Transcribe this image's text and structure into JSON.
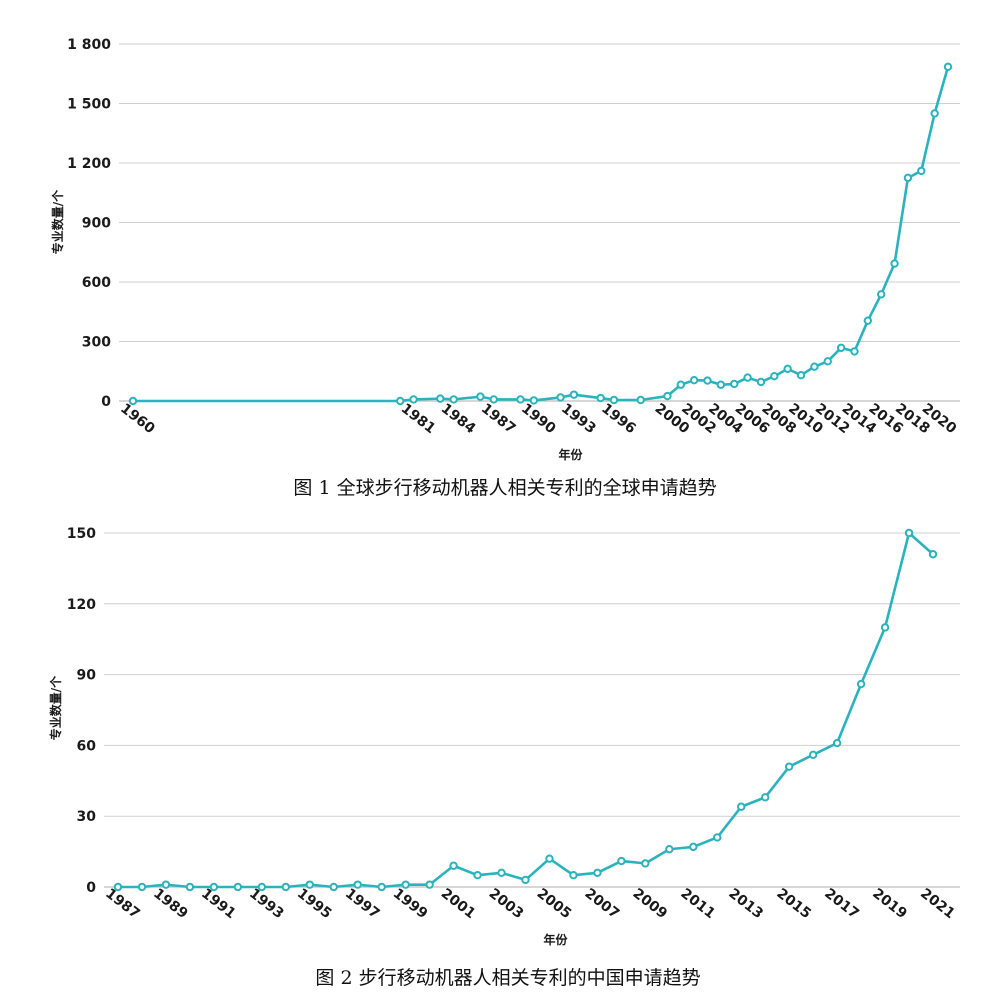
{
  "chart_data": [
    {
      "type": "line",
      "caption": "图 1  全球步行移动机器人相关专利的全球申请趋势",
      "xlabel": "年份",
      "ylabel": "专业数量/个",
      "ylim": [
        0,
        1800
      ],
      "yticks": [
        0,
        300,
        600,
        900,
        1200,
        1500,
        1800
      ],
      "ytick_labels": [
        "0",
        "300",
        "600",
        "900",
        "1 200",
        "1 500",
        "1 800"
      ],
      "xtick_labels": [
        "1960",
        "1981",
        "1984",
        "1987",
        "1990",
        "1993",
        "1996",
        "2000",
        "2002",
        "2004",
        "2006",
        "2008",
        "2010",
        "2012",
        "2014",
        "2016",
        "2018",
        "2020"
      ],
      "grid": true,
      "color": "#2ab3bd",
      "series": [
        {
          "x": [
            "1960",
            "1980",
            "1981",
            "1983",
            "1984",
            "1986",
            "1987",
            "1989",
            "1990",
            "1992",
            "1993",
            "1995",
            "1996",
            "1998",
            "2000",
            "2001",
            "2002",
            "2003",
            "2004",
            "2005",
            "2006",
            "2007",
            "2008",
            "2009",
            "2010",
            "2011",
            "2012",
            "2013",
            "2014",
            "2015",
            "2016",
            "2017",
            "2018",
            "2019",
            "2020",
            "2021"
          ],
          "values": [
            0,
            0,
            8,
            12,
            8,
            22,
            8,
            8,
            3,
            18,
            32,
            15,
            5,
            5,
            25,
            82,
            105,
            103,
            82,
            86,
            118,
            96,
            125,
            162,
            130,
            173,
            200,
            268,
            250,
            405,
            538,
            693,
            1125,
            1160,
            1450,
            1685
          ]
        }
      ]
    },
    {
      "type": "line",
      "caption": "图 2  步行移动机器人相关专利的中国申请趋势",
      "xlabel": "年份",
      "ylabel": "专业数量/个",
      "ylim": [
        0,
        150
      ],
      "yticks": [
        0,
        30,
        60,
        90,
        120,
        150
      ],
      "ytick_labels": [
        "0",
        "30",
        "60",
        "90",
        "120",
        "150"
      ],
      "xtick_labels": [
        "1987",
        "1989",
        "1991",
        "1993",
        "1995",
        "1997",
        "1999",
        "2001",
        "2003",
        "2005",
        "2007",
        "2009",
        "2011",
        "2013",
        "2015",
        "2017",
        "2019",
        "2021"
      ],
      "grid": true,
      "color": "#2ab3bd",
      "series": [
        {
          "x": [
            "1987",
            "1988",
            "1989",
            "1990",
            "1991",
            "1992",
            "1993",
            "1994",
            "1995",
            "1996",
            "1997",
            "1998",
            "1999",
            "2000",
            "2001",
            "2002",
            "2003",
            "2004",
            "2005",
            "2006",
            "2007",
            "2008",
            "2009",
            "2010",
            "2011",
            "2012",
            "2013",
            "2014",
            "2015",
            "2016",
            "2017",
            "2018",
            "2019",
            "2020",
            "2021"
          ],
          "values": [
            0,
            0,
            1,
            0,
            0,
            0,
            0,
            0,
            1,
            0,
            1,
            0,
            1,
            1,
            9,
            5,
            6,
            3,
            12,
            5,
            6,
            11,
            10,
            16,
            17,
            21,
            34,
            38,
            51,
            56,
            61,
            86,
            110,
            150,
            141
          ]
        }
      ]
    }
  ]
}
